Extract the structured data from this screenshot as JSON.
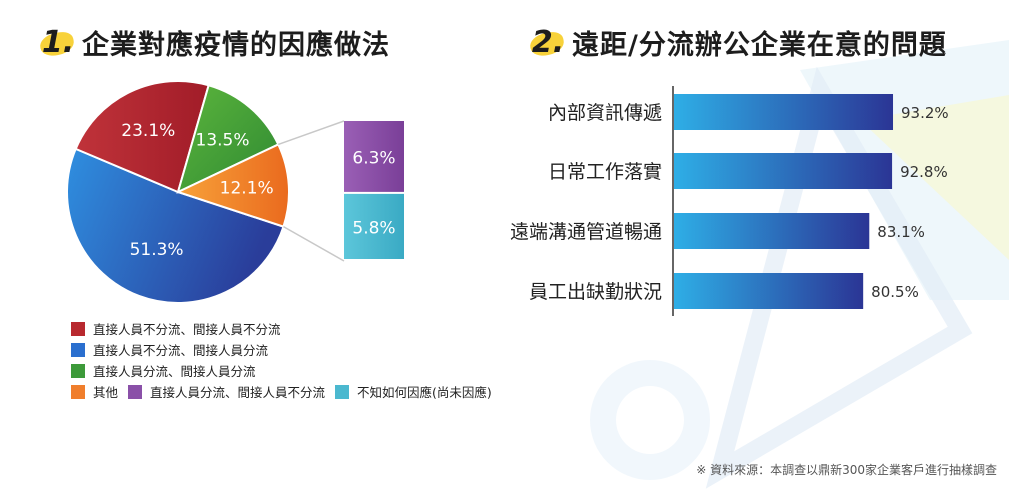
{
  "colors": {
    "red": "#b8292f",
    "blue": "#2a6fcf",
    "green": "#3d9a3a",
    "orange": "#f07e2c",
    "purple": "#8a50a8",
    "cyan": "#4bb8cf",
    "bar_start": "#2eaee6",
    "bar_end": "#2b3595",
    "accent_yellow": "#f8d23a"
  },
  "chart1": {
    "num": "1.",
    "title": "企業對應疫情的因應做法",
    "legend": [
      {
        "label": "直接人員不分流、間接人員不分流",
        "color": "#b8292f"
      },
      {
        "label": "直接人員不分流、間接人員分流",
        "color": "#2a6fcf"
      },
      {
        "label": "直接人員分流、間接人員分流",
        "color": "#3d9a3a"
      },
      {
        "label": "其他",
        "color": "#f07e2c"
      },
      {
        "label": "直接人員分流、間接人員不分流",
        "color": "#8a50a8"
      },
      {
        "label": "不知如何因應(尚未因應)",
        "color": "#4bb8cf"
      }
    ]
  },
  "chart2": {
    "num": "2.",
    "title": "遠距/分流辦公企業在意的問題"
  },
  "source": "※ 資料來源：本調查以鼎新300家企業客戶進行抽樣調查",
  "chart_data": [
    {
      "type": "pie",
      "title": "企業對應疫情的因應做法",
      "slices": [
        {
          "label": "直接人員不分流、間接人員分流",
          "value": 51.3,
          "display": "51.3%"
        },
        {
          "label": "直接人員不分流、間接人員不分流",
          "value": 23.1,
          "display": "23.1%"
        },
        {
          "label": "直接人員分流、間接人員分流",
          "value": 13.5,
          "display": "13.5%"
        },
        {
          "label": "其他",
          "value": 12.1,
          "display": "12.1%"
        }
      ],
      "breakout": {
        "of": "其他",
        "items": [
          {
            "label": "直接人員分流、間接人員不分流",
            "value": 6.3,
            "display": "6.3%"
          },
          {
            "label": "不知如何因應(尚未因應)",
            "value": 5.8,
            "display": "5.8%"
          }
        ]
      }
    },
    {
      "type": "bar",
      "orientation": "horizontal",
      "title": "遠距/分流辦公企業在意的問題",
      "categories": [
        "內部資訊傳遞",
        "日常工作落實",
        "遠端溝通管道暢通",
        "員工出缺勤狀況"
      ],
      "values": [
        93.2,
        92.8,
        83.1,
        80.5
      ],
      "labels": [
        "93.2%",
        "92.8%",
        "83.1%",
        "80.5%"
      ]
    }
  ]
}
